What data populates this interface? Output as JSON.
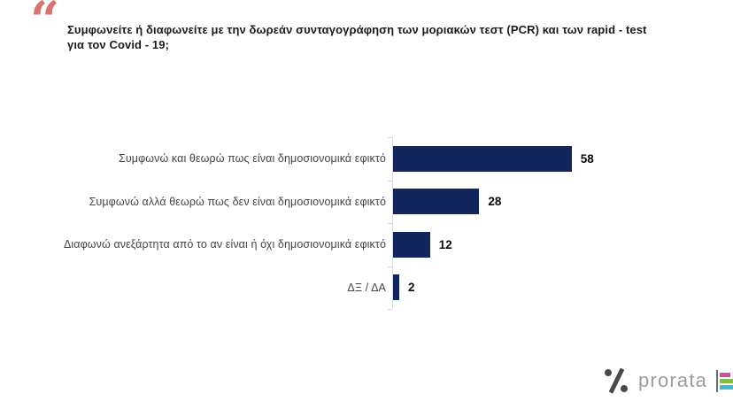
{
  "slide": {
    "quote_glyph": "“",
    "title_line1": "Συμφωνείτε ή διαφωνείτε με την δωρεάν συνταγογράφηση  των μοριακών τεστ (PCR) και των rapid - test",
    "title_line2": "για τον  Covid - 19;"
  },
  "chart_data": {
    "type": "bar",
    "orientation": "horizontal",
    "title": "Συμφωνείτε ή διαφωνείτε με την δωρεάν συνταγογράφηση των μοριακών τεστ (PCR) και των rapid - test για τον Covid - 19;",
    "categories": [
      "Συμφωνώ και θεωρώ πως είναι δημοσιονομικά εφικτό",
      "Συμφωνώ αλλά θεωρώ πως δεν είναι δημοσιονομικά εφικτό",
      "Διαφωνώ ανεξάρτητα από το αν είναι ή όχι δημοσιονομικά εφικτό",
      "ΔΞ / ΔΑ"
    ],
    "values": [
      58,
      28,
      12,
      2
    ],
    "xlim": [
      0,
      60
    ],
    "grid": false,
    "legend": false,
    "data_labels": true,
    "bar_color": "#12265e",
    "axis_color": "#d8d8d8"
  },
  "footer_logo": {
    "brand": "prorata",
    "percent_symbol_color": "#4a4a4c",
    "text_color": "#9c9c9e",
    "chart_icon_bar_colors": [
      "#c9509e",
      "#7fbf42",
      "#41b6d9"
    ]
  },
  "colors": {
    "quote": "#d8736f",
    "title": "#1a1a1a",
    "category_label": "#454545",
    "value_label": "#0a0a0a",
    "background": "#ffffff"
  }
}
